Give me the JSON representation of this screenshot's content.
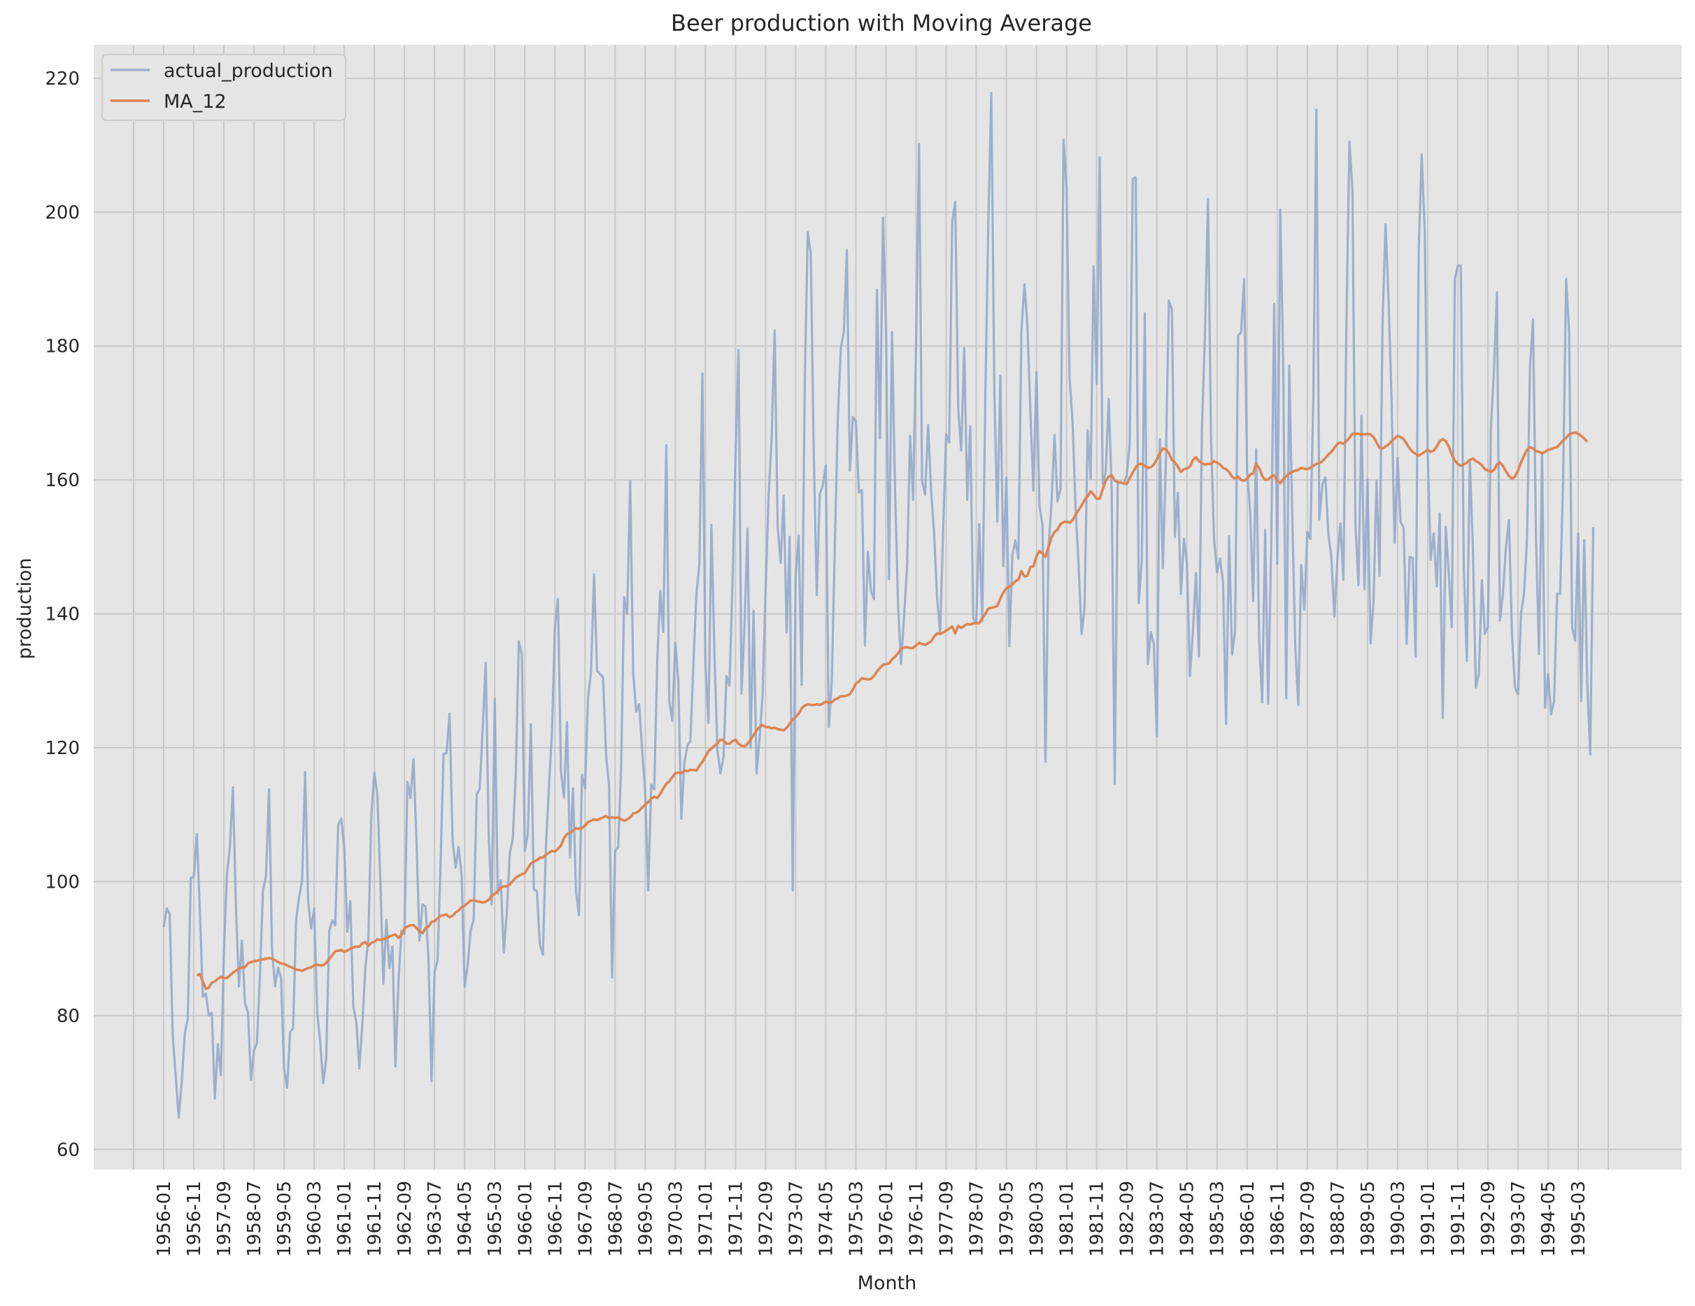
{
  "chart_data": {
    "type": "line",
    "title": "Beer production with Moving Average",
    "xlabel": "Month",
    "ylabel": "production",
    "ylim": [
      57,
      225
    ],
    "yticks": [
      60,
      80,
      100,
      120,
      140,
      160,
      180,
      200,
      220
    ],
    "grid": true,
    "legend_position": "top-left",
    "xtick_labels": [
      "1956-01",
      "1956-11",
      "1957-09",
      "1958-07",
      "1959-05",
      "1960-03",
      "1961-01",
      "1961-11",
      "1962-09",
      "1963-07",
      "1964-05",
      "1965-03",
      "1966-01",
      "1966-11",
      "1967-09",
      "1968-07",
      "1969-05",
      "1970-03",
      "1971-01",
      "1971-11",
      "1972-09",
      "1973-07",
      "1974-05",
      "1975-03",
      "1976-01",
      "1976-11",
      "1977-09",
      "1978-07",
      "1979-05",
      "1980-03",
      "1981-01",
      "1981-11",
      "1982-09",
      "1983-07",
      "1984-05",
      "1985-03",
      "1986-01",
      "1986-11",
      "1987-09",
      "1988-07",
      "1989-05",
      "1990-03",
      "1991-01",
      "1991-11",
      "1992-09",
      "1993-07",
      "1994-05",
      "1995-03"
    ],
    "series": [
      {
        "name": "actual_production",
        "color": "#8fa7c9",
        "start": "1956-01",
        "values": [
          93.2,
          96.0,
          95.2,
          77.1,
          70.9,
          64.8,
          70.1,
          77.3,
          79.5,
          100.6,
          100.7,
          107.1,
          95.9,
          82.8,
          83.3,
          80.0,
          80.4,
          67.6,
          75.7,
          71.1,
          89.3,
          101.1,
          105.2,
          114.1,
          96.3,
          84.4,
          91.2,
          81.9,
          80.5,
          70.4,
          74.8,
          75.9,
          86.3,
          98.7,
          100.9,
          113.8,
          89.8,
          84.4,
          87.2,
          85.6,
          72.0,
          69.2,
          77.5,
          78.1,
          94.3,
          97.7,
          100.2,
          116.4,
          97.1,
          93.0,
          96.0,
          80.5,
          76.1,
          69.9,
          73.6,
          92.6,
          94.2,
          93.5,
          108.5,
          109.4,
          105.1,
          92.5,
          97.1,
          81.4,
          79.1,
          72.1,
          78.7,
          87.1,
          91.4,
          109.9,
          116.3,
          113.0,
          100.0,
          84.8,
          94.3,
          87.1,
          90.3,
          72.4,
          84.9,
          92.7,
          92.2,
          114.9,
          112.5,
          118.3,
          106.0,
          91.2,
          96.6,
          96.3,
          88.2,
          70.2,
          86.5,
          88.2,
          102.8,
          119.1,
          119.2,
          125.1,
          106.1,
          102.1,
          105.2,
          101.0,
          84.3,
          87.5,
          92.7,
          94.4,
          113.0,
          113.9,
          122.9,
          132.7,
          106.9,
          96.6,
          127.3,
          98.2,
          100.2,
          89.4,
          95.3,
          104.2,
          106.4,
          116.2,
          135.9,
          134.0,
          104.6,
          107.1,
          123.5,
          98.8,
          98.6,
          90.6,
          89.1,
          105.2,
          114.0,
          122.1,
          138.0,
          142.2,
          116.4,
          112.6,
          123.8,
          103.6,
          113.9,
          98.6,
          95.0,
          116.0,
          113.9,
          127.5,
          131.4,
          145.9,
          131.5,
          131.0,
          130.5,
          118.9,
          114.3,
          85.7,
          104.6,
          105.1,
          117.3,
          142.5,
          140.0,
          159.8,
          131.2,
          125.4,
          126.5,
          119.4,
          113.5,
          98.7,
          114.5,
          113.8,
          133.1,
          143.4,
          137.3,
          165.2,
          126.9,
          124.0,
          135.7,
          130.0,
          109.4,
          117.8,
          120.3,
          121.0,
          132.3,
          142.9,
          147.4,
          175.9,
          132.6,
          123.7,
          153.3,
          134.0,
          119.6,
          116.2,
          118.6,
          130.7,
          129.3,
          144.4,
          163.2,
          179.4,
          128.1,
          138.4,
          152.7,
          120.0,
          140.5,
          116.2,
          121.4,
          127.8,
          143.6,
          157.6,
          166.2,
          182.3,
          153.1,
          147.6,
          157.7,
          137.2,
          151.5,
          98.7,
          145.8,
          151.7,
          129.4,
          174.1,
          197.0,
          193.9,
          164.1,
          142.8,
          157.9,
          159.2,
          162.2,
          123.1,
          130.0,
          150.1,
          169.4,
          179.7,
          182.1,
          194.3,
          161.4,
          169.4,
          168.8,
          158.1,
          158.5,
          135.3,
          149.3,
          143.4,
          142.2,
          188.4,
          166.2,
          199.2,
          182.7,
          145.2,
          182.1,
          158.7,
          141.6,
          132.6,
          139.6,
          147.0,
          166.6,
          157.0,
          180.4,
          210.2,
          159.8,
          157.8,
          168.2,
          158.4,
          152.0,
          142.2,
          137.2,
          152.6,
          166.8,
          165.6,
          198.6,
          201.5,
          170.7,
          164.4,
          179.7,
          157.0,
          168.0,
          139.3,
          138.6,
          153.4,
          138.9,
          172.1,
          198.4,
          217.8,
          173.7,
          153.8,
          175.6,
          147.1,
          160.3,
          135.2,
          148.8,
          151.0,
          148.2,
          182.2,
          189.2,
          183.1,
          170.0,
          158.4,
          176.1,
          156.2,
          153.2,
          117.9,
          149.8,
          156.6,
          166.7,
          156.8,
          158.6,
          210.8,
          203.6,
          175.2,
          168.7,
          155.9,
          147.3,
          137.0,
          141.1,
          167.4,
          160.2,
          191.9,
          174.4,
          208.2,
          159.4,
          161.1,
          172.1,
          158.4,
          114.6,
          159.6,
          159.7,
          159.4,
          160.7,
          165.5,
          205.0,
          205.2,
          141.6,
          148.1,
          184.9,
          132.5,
          137.3,
          135.5,
          121.7,
          166.1,
          146.8,
          162.8,
          186.8,
          185.5,
          151.5,
          158.1,
          143.0,
          151.2,
          147.6,
          130.7,
          137.5,
          146.1,
          133.6,
          167.9,
          181.9,
          202.0,
          166.5,
          151.3,
          146.2,
          148.3,
          144.7,
          123.6,
          151.6,
          133.9,
          137.4,
          181.6,
          182.0,
          190.0,
          161.2,
          155.5,
          141.9,
          164.6,
          136.2,
          126.8,
          152.5,
          126.6,
          150.1,
          186.3,
          147.5,
          200.4,
          177.2,
          127.4,
          177.1,
          154.4,
          135.2,
          126.4,
          147.3,
          140.6,
          152.3,
          151.2,
          172.2,
          215.3,
          154.1,
          159.3,
          160.4,
          151.9,
          148.4,
          139.6,
          148.2,
          153.5,
          145.1,
          183.7,
          210.5,
          203.3,
          153.3,
          144.3,
          169.6,
          143.7,
          160.1,
          135.6,
          141.8,
          159.9,
          145.7,
          183.5,
          198.2,
          186.8,
          172.0,
          150.6,
          163.3,
          153.7,
          152.9,
          135.5,
          148.5,
          148.4,
          133.6,
          194.1,
          208.6,
          197.3,
          164.0,
          148.1,
          152.0,
          144.1,
          155.0,
          124.5,
          153.0,
          146.0,
          138.0,
          190.0,
          192.0,
          192.0,
          147.0,
          133.0,
          163.0,
          150.0,
          129.0,
          131.0,
          145.0,
          137.0,
          138.0,
          168.0,
          176.0,
          188.0,
          139.0,
          143.0,
          150.0,
          154.0,
          137.0,
          129.0,
          128.0,
          140.0,
          143.0,
          151.0,
          177.0,
          184.0,
          151.0,
          134.0,
          164.0,
          126.0,
          131.0,
          125.0,
          127.0,
          143.0,
          143.0,
          160.0,
          190.0,
          182.0,
          138.0,
          136.0,
          152.0,
          127.0,
          151.0,
          130.0,
          119.0,
          153.0
        ]
      },
      {
        "name": "MA_12",
        "color": "#dd8452",
        "start": "1956-12",
        "values": [
          86.0,
          86.2,
          85.1,
          84.0,
          84.2,
          84.9,
          85.1,
          85.5,
          85.8,
          85.6,
          85.6,
          86.0,
          86.4,
          86.7,
          87.0,
          87.2,
          87.2,
          87.8,
          88.0,
          88.1,
          88.2,
          88.3,
          88.4,
          88.5,
          88.6,
          88.5,
          88.3,
          88.0,
          87.8,
          87.7,
          87.5,
          87.3,
          87.1,
          86.9,
          86.8,
          86.7,
          86.9,
          87.1,
          87.2,
          87.5,
          87.6,
          87.5,
          87.5,
          87.9,
          88.4,
          89.0,
          89.6,
          89.7,
          89.8,
          89.5,
          89.7,
          90.0,
          90.2,
          90.3,
          90.3,
          90.8,
          91.0,
          90.4,
          90.9,
          91.0,
          91.4,
          91.3,
          91.4,
          91.6,
          91.8,
          92.0,
          92.1,
          91.6,
          92.1,
          93.0,
          93.3,
          93.5,
          93.5,
          93.1,
          92.6,
          92.3,
          93.1,
          93.3,
          94.0,
          94.1,
          94.5,
          94.9,
          95.0,
          95.1,
          94.7,
          94.9,
          95.4,
          95.7,
          96.2,
          96.4,
          96.8,
          97.2,
          97.2,
          97.1,
          97.0,
          96.9,
          97.0,
          97.3,
          97.9,
          98.2,
          98.6,
          99.1,
          99.3,
          99.3,
          99.6,
          100.1,
          100.6,
          100.9,
          101.1,
          101.3,
          102.0,
          102.7,
          103.0,
          103.2,
          103.6,
          103.6,
          104.0,
          104.3,
          104.6,
          104.5,
          104.9,
          105.4,
          106.5,
          107.1,
          107.3,
          107.6,
          108.0,
          107.9,
          108.0,
          108.4,
          108.9,
          109.1,
          109.3,
          109.2,
          109.4,
          109.6,
          109.8,
          109.5,
          109.6,
          109.5,
          109.6,
          109.3,
          109.1,
          109.3,
          109.6,
          110.2,
          110.3,
          110.6,
          111.1,
          111.5,
          111.9,
          112.4,
          112.7,
          112.5,
          113.1,
          113.9,
          114.6,
          115.0,
          115.6,
          116.2,
          116.3,
          116.2,
          116.6,
          116.5,
          116.7,
          116.7,
          116.6,
          117.3,
          117.9,
          118.7,
          119.5,
          119.9,
          120.3,
          120.7,
          121.2,
          121.1,
          120.6,
          120.6,
          121.0,
          121.2,
          120.6,
          120.3,
          120.2,
          120.6,
          121.2,
          121.9,
          122.6,
          123.1,
          123.4,
          123.1,
          123.1,
          122.9,
          123.0,
          122.8,
          122.7,
          122.6,
          123.0,
          123.6,
          124.2,
          124.6,
          125.1,
          125.9,
          126.3,
          126.5,
          126.4,
          126.4,
          126.5,
          126.4,
          126.6,
          126.9,
          126.7,
          126.8,
          127.2,
          127.4,
          127.7,
          127.7,
          127.8,
          128.0,
          128.7,
          129.6,
          129.9,
          130.4,
          130.3,
          130.2,
          130.3,
          130.7,
          131.4,
          131.9,
          132.4,
          132.5,
          132.6,
          133.2,
          133.6,
          134.1,
          134.8,
          135.0,
          135.0,
          134.9,
          134.9,
          135.3,
          135.7,
          135.5,
          135.4,
          135.6,
          135.9,
          136.6,
          137.1,
          137.0,
          137.2,
          137.5,
          137.8,
          138.1,
          137.1,
          138.2,
          137.9,
          138.2,
          138.5,
          138.4,
          138.6,
          138.6,
          138.6,
          139.4,
          140.0,
          140.8,
          140.9,
          141.0,
          141.2,
          142.3,
          143.2,
          143.8,
          144.1,
          144.4,
          144.9,
          145.1,
          146.4,
          145.6,
          145.7,
          147.0,
          147.1,
          148.6,
          149.4,
          149.0,
          148.5,
          150.0,
          151.4,
          152.2,
          152.6,
          153.4,
          153.7,
          153.8,
          153.6,
          154.0,
          154.8,
          155.5,
          156.2,
          157.0,
          157.6,
          158.3,
          157.8,
          157.2,
          157.2,
          158.6,
          159.9,
          160.5,
          160.7,
          159.9,
          159.7,
          159.6,
          159.5,
          159.4,
          160.3,
          161.1,
          161.9,
          162.4,
          162.4,
          162.1,
          161.8,
          161.9,
          162.3,
          163.1,
          164.0,
          164.7,
          164.6,
          164.0,
          163.0,
          162.6,
          162.0,
          161.2,
          161.6,
          161.7,
          162.0,
          163.0,
          163.4,
          162.8,
          162.5,
          162.3,
          162.4,
          162.4,
          162.8,
          162.6,
          162.3,
          161.8,
          161.6,
          161.2,
          160.5,
          160.2,
          160.5,
          160.0,
          159.9,
          160.2,
          160.8,
          161.0,
          162.4,
          161.8,
          160.6,
          160.0,
          160.1,
          160.5,
          160.7,
          159.9,
          159.5,
          160.1,
          160.6,
          161.0,
          161.2,
          161.4,
          161.5,
          161.8,
          161.7,
          161.6,
          161.8,
          162.1,
          162.4,
          162.5,
          162.8,
          163.3,
          163.8,
          164.2,
          164.8,
          165.4,
          165.6,
          165.4,
          165.8,
          166.3,
          166.9,
          166.9,
          166.9,
          166.8,
          166.8,
          166.9,
          166.8,
          166.4,
          165.6,
          164.8,
          164.7,
          165.0,
          165.3,
          165.8,
          166.2,
          166.6,
          166.4,
          166.1,
          165.4,
          164.7,
          164.2,
          163.9,
          163.6,
          163.9,
          164.2,
          164.5,
          164.2,
          164.4,
          165.0,
          165.8,
          166.1,
          165.8,
          165.0,
          163.8,
          162.9,
          162.4,
          162.1,
          162.3,
          162.6,
          163.0,
          163.2,
          162.8,
          162.6,
          162.2,
          161.6,
          161.4,
          161.2,
          161.5,
          162.3,
          162.6,
          162.1,
          161.3,
          160.6,
          160.2,
          160.5,
          161.4,
          162.6,
          163.6,
          164.5,
          164.9,
          164.7,
          164.3,
          164.2,
          164.0,
          164.2,
          164.5,
          164.6,
          164.8,
          164.9,
          165.4,
          165.9,
          166.3,
          166.8,
          167.0,
          167.1,
          166.9,
          166.6,
          166.2,
          165.7
        ]
      }
    ]
  }
}
